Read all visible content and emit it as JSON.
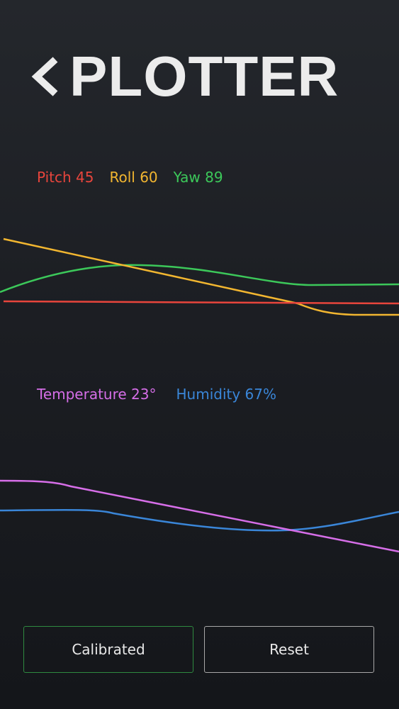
{
  "header": {
    "title": "PLOTTER"
  },
  "motion_legend": [
    "Pitch 45",
    "Roll 60",
    "Yaw 89"
  ],
  "climate_legend": [
    "Temperature 23°",
    "Humidity 67%"
  ],
  "buttons": [
    "Calibrated",
    "Reset"
  ]
}
